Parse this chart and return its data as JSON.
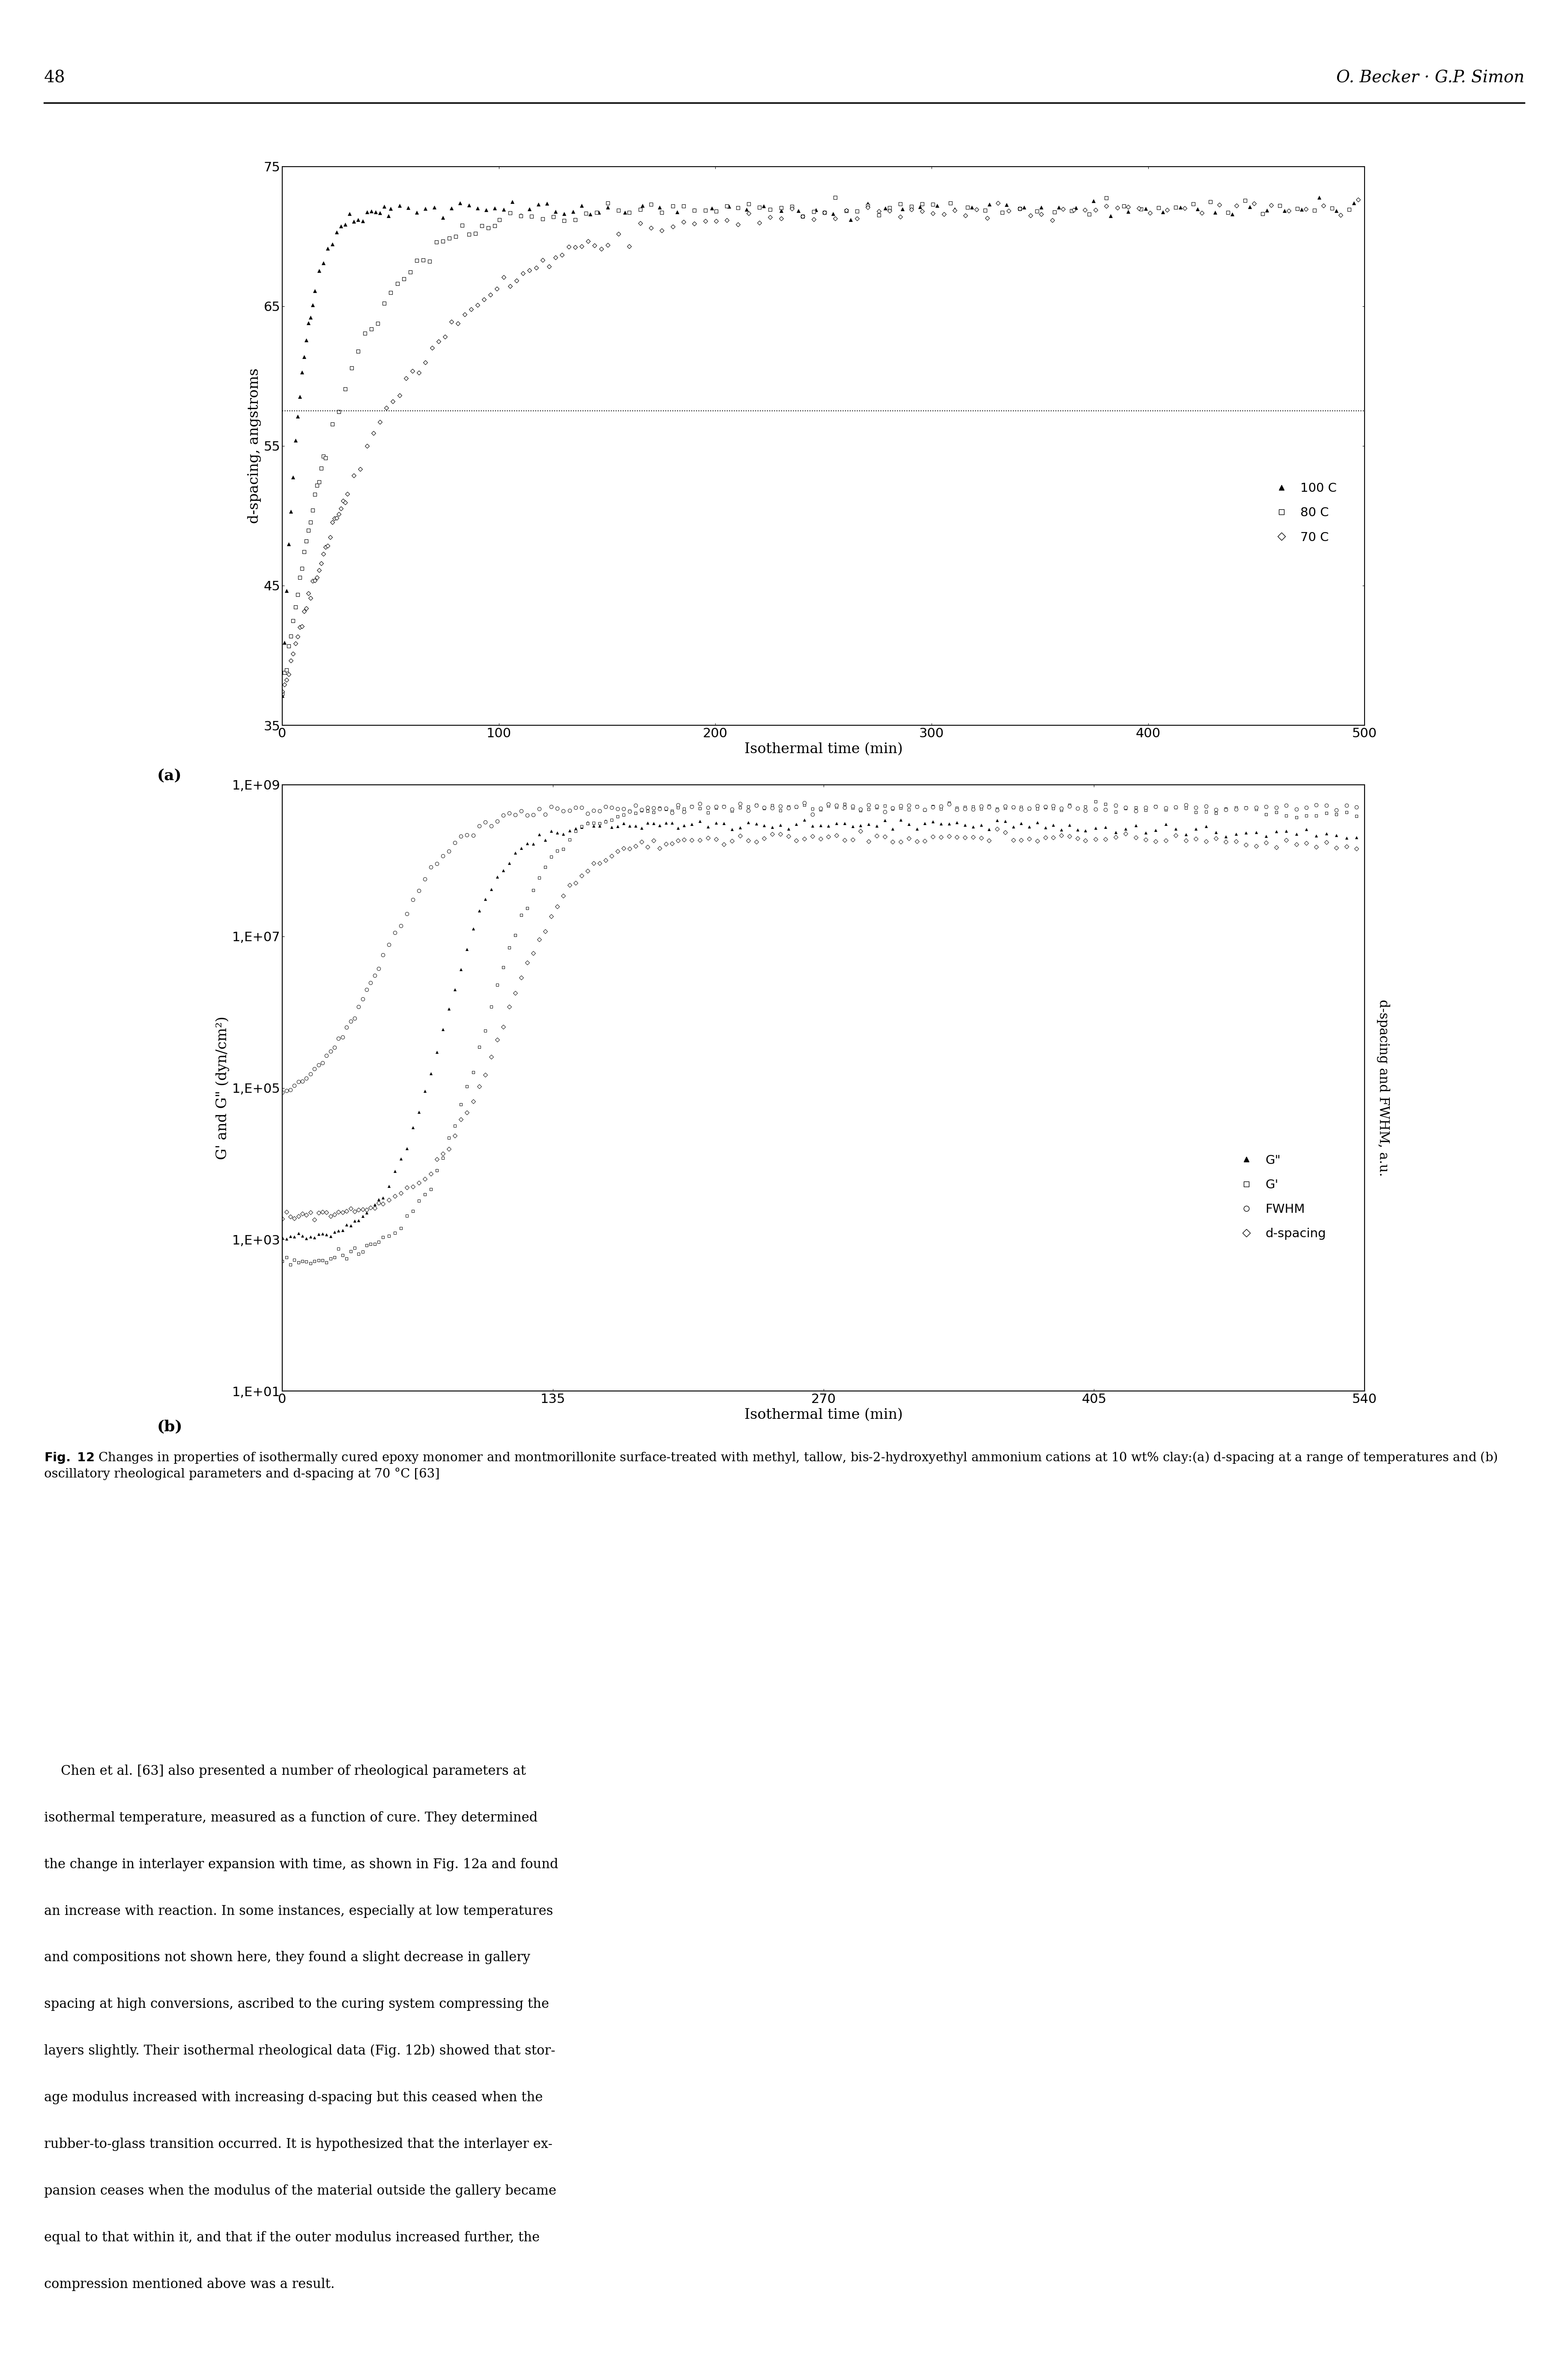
{
  "page_number": "48",
  "page_header": "O. Becker · G.P. Simon",
  "panel_a": {
    "xlabel": "Isothermal time (min)",
    "ylabel": "d-spacing, angstroms",
    "xlim": [
      0,
      500
    ],
    "ylim": [
      35,
      75
    ],
    "yticks": [
      35,
      45,
      55,
      65,
      75
    ],
    "xticks": [
      0,
      100,
      200,
      300,
      400,
      500
    ],
    "dotted_line_y": 57.5
  },
  "panel_b": {
    "xlabel": "Isothermal time (min)",
    "ylabel_left": "G' and G\" (dyn/cm²)",
    "ylabel_right": "d-spacing and FWHM, a.u.",
    "xlim": [
      0,
      540
    ],
    "ylim_log": [
      10,
      1000000000
    ],
    "xticks": [
      0,
      135,
      270,
      405,
      540
    ],
    "yticks": [
      10,
      1000,
      100000,
      10000000,
      1000000000
    ],
    "ytick_labels": [
      "1,E+01",
      "1,E+03",
      "1,E+05",
      "1,E+07",
      "1,E+09"
    ]
  },
  "fig_caption_bold": "Fig. 12",
  "fig_caption_rest": " Changes in properties of isothermally cured epoxy monomer and montmorillonite surface-treated with methyl, tallow, bis-2-hydroxyethyl ammonium cations at 10 wt% clay:(a) d-spacing at a range of temperatures and (b) oscillatory rheological parameters and d-spacing at 70 °C [63]",
  "body_text_indent": "    Chen et al. [63] also presented a number of rheological parameters at isothermal temperature, measured as a function of cure. They determined the change in interlayer expansion with time, as shown in Fig. 12a and found an increase with reaction. In some instances, especially at low temperatures and compositions not shown here, they found a slight decrease in gallery spacing at high conversions, ascribed to the curing system compressing the layers slightly. Their isothermal rheological data (Fig. 12b) showed that storage modulus increased with increasing d-spacing but this ceased when the rubber-to-glass transition occurred. It is hypothesized that the interlayer expansion ceases when the modulus of the material outside the gallery became equal to that within it, and that if the outer modulus increased further, the compression mentioned above was a result.",
  "background_color": "#ffffff"
}
